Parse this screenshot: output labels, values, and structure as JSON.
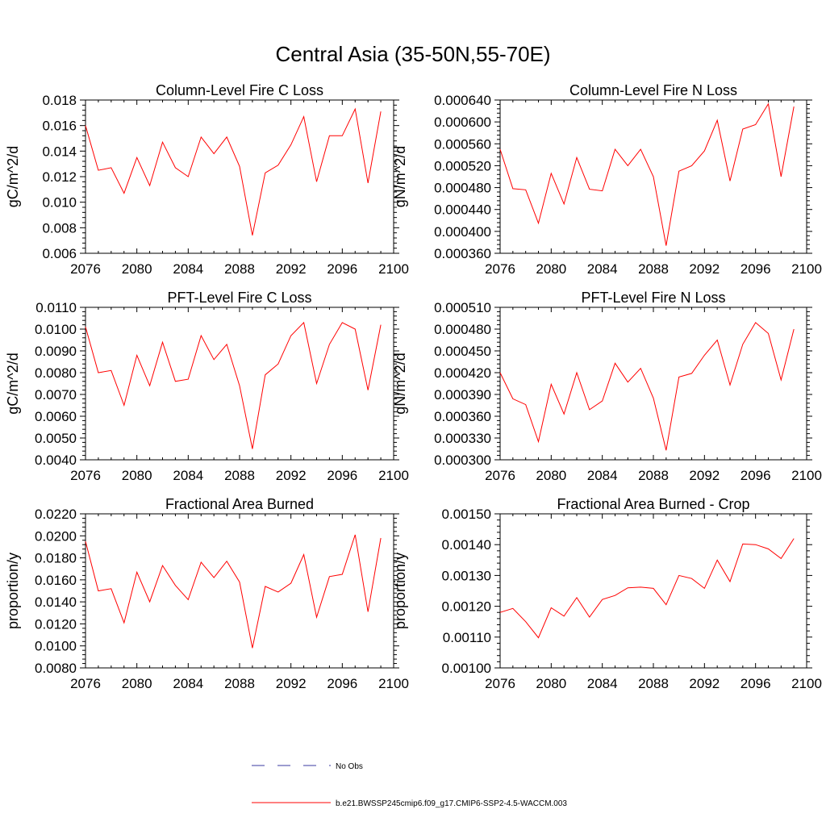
{
  "title": "Central Asia (35-50N,55-70E)",
  "colors": {
    "model": "#ff0000",
    "obs": "#3a3aa0",
    "axis": "#000000"
  },
  "legend": [
    {
      "label": "No Obs",
      "color": "#3a3aa0",
      "style": "dashed"
    },
    {
      "label": "b.e21.BWSSP245cmip6.f09_g17.CMIP6-SSP2-4.5-WACCM.003",
      "color": "#ff0000",
      "style": "solid"
    }
  ],
  "chart_data": [
    {
      "type": "line",
      "title": "Column-Level Fire C Loss",
      "ylabel": "gC/m^2/d",
      "xlim": [
        2076,
        2100
      ],
      "ylim": [
        0.006,
        0.018
      ],
      "x_ticks": [
        "2076",
        "2080",
        "2084",
        "2088",
        "2092",
        "2096",
        "2100"
      ],
      "y_ticks": [
        "0.006",
        "0.008",
        "0.010",
        "0.012",
        "0.014",
        "0.016",
        "0.018"
      ],
      "x": [
        2076,
        2077,
        2078,
        2079,
        2080,
        2081,
        2082,
        2083,
        2084,
        2085,
        2086,
        2087,
        2088,
        2089,
        2090,
        2091,
        2092,
        2093,
        2094,
        2095,
        2096,
        2097,
        2098,
        2099
      ],
      "series": [
        {
          "name": "b.e21.BWSSP245cmip6.f09_g17.CMIP6-SSP2-4.5-WACCM.003",
          "values": [
            0.016,
            0.0125,
            0.0127,
            0.0107,
            0.0135,
            0.0113,
            0.0147,
            0.0127,
            0.012,
            0.0151,
            0.0138,
            0.0151,
            0.0128,
            0.0074,
            0.0123,
            0.0129,
            0.0145,
            0.0167,
            0.0116,
            0.0152,
            0.0152,
            0.0173,
            0.0115,
            0.0171
          ]
        }
      ]
    },
    {
      "type": "line",
      "title": "Column-Level Fire N Loss",
      "ylabel": "gN/m^2/d",
      "xlim": [
        2076,
        2100
      ],
      "ylim": [
        0.00036,
        0.00064
      ],
      "x_ticks": [
        "2076",
        "2080",
        "2084",
        "2088",
        "2092",
        "2096",
        "2100"
      ],
      "y_ticks": [
        "0.000360",
        "0.000400",
        "0.000440",
        "0.000480",
        "0.000520",
        "0.000560",
        "0.000600",
        "0.000640"
      ],
      "x": [
        2076,
        2077,
        2078,
        2079,
        2080,
        2081,
        2082,
        2083,
        2084,
        2085,
        2086,
        2087,
        2088,
        2089,
        2090,
        2091,
        2092,
        2093,
        2094,
        2095,
        2096,
        2097,
        2098,
        2099
      ],
      "series": [
        {
          "name": "b.e21.BWSSP245cmip6.f09_g17.CMIP6-SSP2-4.5-WACCM.003",
          "values": [
            0.00055,
            0.000478,
            0.000476,
            0.000415,
            0.000506,
            0.00045,
            0.000535,
            0.000477,
            0.000474,
            0.00055,
            0.00052,
            0.00055,
            0.0005,
            0.000374,
            0.00051,
            0.00052,
            0.000547,
            0.000603,
            0.000492,
            0.000587,
            0.000595,
            0.000633,
            0.0005,
            0.000628
          ]
        }
      ]
    },
    {
      "type": "line",
      "title": "PFT-Level Fire C Loss",
      "ylabel": "gC/m^2/d",
      "xlim": [
        2076,
        2100
      ],
      "ylim": [
        0.004,
        0.011
      ],
      "x_ticks": [
        "2076",
        "2080",
        "2084",
        "2088",
        "2092",
        "2096",
        "2100"
      ],
      "y_ticks": [
        "0.0040",
        "0.0050",
        "0.0060",
        "0.0070",
        "0.0080",
        "0.0090",
        "0.0100",
        "0.0110"
      ],
      "x": [
        2076,
        2077,
        2078,
        2079,
        2080,
        2081,
        2082,
        2083,
        2084,
        2085,
        2086,
        2087,
        2088,
        2089,
        2090,
        2091,
        2092,
        2093,
        2094,
        2095,
        2096,
        2097,
        2098,
        2099
      ],
      "series": [
        {
          "name": "b.e21.BWSSP245cmip6.f09_g17.CMIP6-SSP2-4.5-WACCM.003",
          "values": [
            0.0101,
            0.008,
            0.0081,
            0.0065,
            0.0088,
            0.0074,
            0.0094,
            0.0076,
            0.0077,
            0.0097,
            0.0086,
            0.0093,
            0.0074,
            0.0045,
            0.0079,
            0.0084,
            0.0097,
            0.0103,
            0.0075,
            0.0093,
            0.0103,
            0.01,
            0.0072,
            0.0102
          ]
        }
      ]
    },
    {
      "type": "line",
      "title": "PFT-Level Fire N Loss",
      "ylabel": "gN/m^2/d",
      "xlim": [
        2076,
        2100
      ],
      "ylim": [
        0.0003,
        0.00051
      ],
      "x_ticks": [
        "2076",
        "2080",
        "2084",
        "2088",
        "2092",
        "2096",
        "2100"
      ],
      "y_ticks": [
        "0.000300",
        "0.000330",
        "0.000360",
        "0.000390",
        "0.000420",
        "0.000450",
        "0.000480",
        "0.000510"
      ],
      "x": [
        2076,
        2077,
        2078,
        2079,
        2080,
        2081,
        2082,
        2083,
        2084,
        2085,
        2086,
        2087,
        2088,
        2089,
        2090,
        2091,
        2092,
        2093,
        2094,
        2095,
        2096,
        2097,
        2098,
        2099
      ],
      "series": [
        {
          "name": "b.e21.BWSSP245cmip6.f09_g17.CMIP6-SSP2-4.5-WACCM.003",
          "values": [
            0.00042,
            0.000384,
            0.000376,
            0.000325,
            0.000404,
            0.000363,
            0.00042,
            0.000369,
            0.000381,
            0.000433,
            0.000407,
            0.000426,
            0.000385,
            0.000313,
            0.000414,
            0.000419,
            0.000444,
            0.000465,
            0.000403,
            0.000459,
            0.000489,
            0.000474,
            0.00041,
            0.00048
          ]
        }
      ]
    },
    {
      "type": "line",
      "title": "Fractional Area Burned",
      "ylabel": "proportion/y",
      "xlim": [
        2076,
        2100
      ],
      "ylim": [
        0.008,
        0.022
      ],
      "x_ticks": [
        "2076",
        "2080",
        "2084",
        "2088",
        "2092",
        "2096",
        "2100"
      ],
      "y_ticks": [
        "0.0080",
        "0.0100",
        "0.0120",
        "0.0140",
        "0.0160",
        "0.0180",
        "0.0200",
        "0.0220"
      ],
      "x": [
        2076,
        2077,
        2078,
        2079,
        2080,
        2081,
        2082,
        2083,
        2084,
        2085,
        2086,
        2087,
        2088,
        2089,
        2090,
        2091,
        2092,
        2093,
        2094,
        2095,
        2096,
        2097,
        2098,
        2099
      ],
      "series": [
        {
          "name": "b.e21.BWSSP245cmip6.f09_g17.CMIP6-SSP2-4.5-WACCM.003",
          "values": [
            0.0195,
            0.015,
            0.0152,
            0.0121,
            0.0167,
            0.014,
            0.0173,
            0.0155,
            0.0142,
            0.0176,
            0.0162,
            0.0177,
            0.0158,
            0.0098,
            0.0154,
            0.0149,
            0.0157,
            0.0183,
            0.0126,
            0.0163,
            0.0165,
            0.0201,
            0.0131,
            0.0198
          ]
        }
      ]
    },
    {
      "type": "line",
      "title": "Fractional Area Burned - Crop",
      "ylabel": "proportion/y",
      "xlim": [
        2076,
        2100
      ],
      "ylim": [
        0.001,
        0.0015
      ],
      "x_ticks": [
        "2076",
        "2080",
        "2084",
        "2088",
        "2092",
        "2096",
        "2100"
      ],
      "y_ticks": [
        "0.00100",
        "0.00110",
        "0.00120",
        "0.00130",
        "0.00140",
        "0.00150"
      ],
      "x": [
        2076,
        2077,
        2078,
        2079,
        2080,
        2081,
        2082,
        2083,
        2084,
        2085,
        2086,
        2087,
        2088,
        2089,
        2090,
        2091,
        2092,
        2093,
        2094,
        2095,
        2096,
        2097,
        2098,
        2099
      ],
      "series": [
        {
          "name": "b.e21.BWSSP245cmip6.f09_g17.CMIP6-SSP2-4.5-WACCM.003",
          "values": [
            0.00118,
            0.001193,
            0.00115,
            0.001098,
            0.001195,
            0.001168,
            0.001228,
            0.001165,
            0.001222,
            0.001235,
            0.00126,
            0.001262,
            0.001258,
            0.001205,
            0.0013,
            0.00129,
            0.001258,
            0.00135,
            0.00128,
            0.001402,
            0.0014,
            0.001386,
            0.001355,
            0.00142
          ]
        }
      ]
    }
  ]
}
